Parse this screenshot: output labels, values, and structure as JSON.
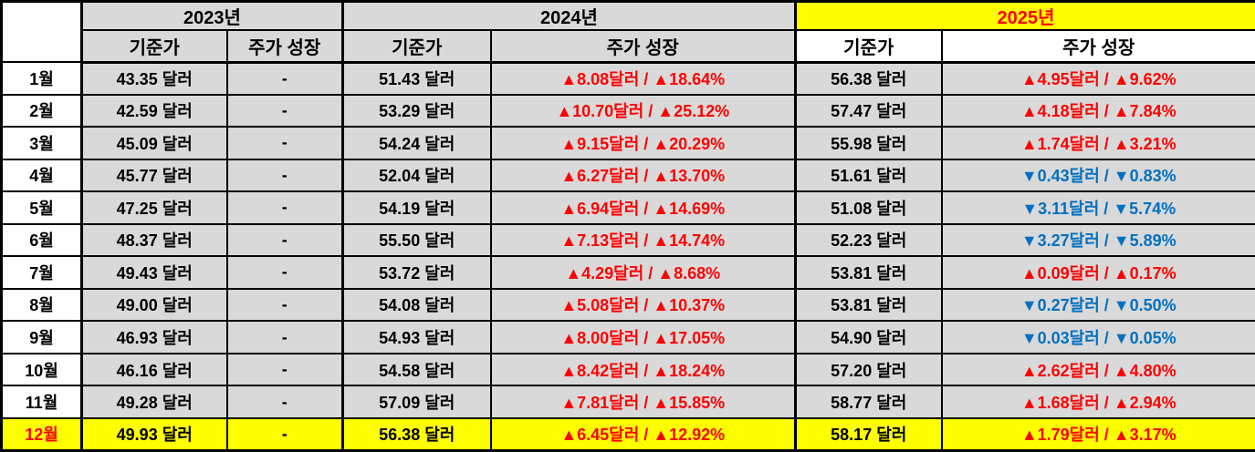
{
  "colors": {
    "highlight_yellow": "#ffff00",
    "up_red": "#ff0000",
    "down_blue": "#0070c0",
    "cell_gray": "#d9d9d9",
    "month_white": "#ffffff",
    "border_black": "#000000"
  },
  "chart_data": {
    "type": "table",
    "corner_label": "",
    "years": [
      {
        "label": "2023년",
        "highlight": false,
        "sub_columns": [
          "기준가",
          "주가 성장"
        ]
      },
      {
        "label": "2024년",
        "highlight": false,
        "sub_columns": [
          "기준가",
          "주가 성장"
        ]
      },
      {
        "label": "2025년",
        "highlight": true,
        "sub_columns": [
          "기준가",
          "주가 성장"
        ]
      }
    ],
    "rows": [
      {
        "month": "1월",
        "highlight": false,
        "y2023_price": "43.35 달러",
        "y2023_growth": "-",
        "y2024_price": "51.43 달러",
        "y2024_growth": "▲8.08달러 / ▲18.64%",
        "y2024_dir": "up",
        "y2025_price": "56.38 달러",
        "y2025_growth": "▲4.95달러 / ▲9.62%",
        "y2025_dir": "up"
      },
      {
        "month": "2월",
        "highlight": false,
        "y2023_price": "42.59 달러",
        "y2023_growth": "-",
        "y2024_price": "53.29 달러",
        "y2024_growth": "▲10.70달러 / ▲25.12%",
        "y2024_dir": "up",
        "y2025_price": "57.47 달러",
        "y2025_growth": "▲4.18달러 / ▲7.84%",
        "y2025_dir": "up"
      },
      {
        "month": "3월",
        "highlight": false,
        "y2023_price": "45.09 달러",
        "y2023_growth": "-",
        "y2024_price": "54.24 달러",
        "y2024_growth": "▲9.15달러 / ▲20.29%",
        "y2024_dir": "up",
        "y2025_price": "55.98 달러",
        "y2025_growth": "▲1.74달러 / ▲3.21%",
        "y2025_dir": "up"
      },
      {
        "month": "4월",
        "highlight": false,
        "y2023_price": "45.77 달러",
        "y2023_growth": "-",
        "y2024_price": "52.04 달러",
        "y2024_growth": "▲6.27달러 / ▲13.70%",
        "y2024_dir": "up",
        "y2025_price": "51.61 달러",
        "y2025_growth": "▼0.43달러 / ▼0.83%",
        "y2025_dir": "down"
      },
      {
        "month": "5월",
        "highlight": false,
        "y2023_price": "47.25 달러",
        "y2023_growth": "-",
        "y2024_price": "54.19 달러",
        "y2024_growth": "▲6.94달러 / ▲14.69%",
        "y2024_dir": "up",
        "y2025_price": "51.08 달러",
        "y2025_growth": "▼3.11달러 / ▼5.74%",
        "y2025_dir": "down"
      },
      {
        "month": "6월",
        "highlight": false,
        "y2023_price": "48.37 달러",
        "y2023_growth": "-",
        "y2024_price": "55.50 달러",
        "y2024_growth": "▲7.13달러 / ▲14.74%",
        "y2024_dir": "up",
        "y2025_price": "52.23 달러",
        "y2025_growth": "▼3.27달러 / ▼5.89%",
        "y2025_dir": "down"
      },
      {
        "month": "7월",
        "highlight": false,
        "y2023_price": "49.43 달러",
        "y2023_growth": "-",
        "y2024_price": "53.72 달러",
        "y2024_growth": "▲4.29달러 / ▲8.68%",
        "y2024_dir": "up",
        "y2025_price": "53.81 달러",
        "y2025_growth": "▲0.09달러 / ▲0.17%",
        "y2025_dir": "up"
      },
      {
        "month": "8월",
        "highlight": false,
        "y2023_price": "49.00 달러",
        "y2023_growth": "-",
        "y2024_price": "54.08 달러",
        "y2024_growth": "▲5.08달러 / ▲10.37%",
        "y2024_dir": "up",
        "y2025_price": "53.81 달러",
        "y2025_growth": "▼0.27달러 / ▼0.50%",
        "y2025_dir": "down"
      },
      {
        "month": "9월",
        "highlight": false,
        "y2023_price": "46.93 달러",
        "y2023_growth": "-",
        "y2024_price": "54.93 달러",
        "y2024_growth": "▲8.00달러 / ▲17.05%",
        "y2024_dir": "up",
        "y2025_price": "54.90 달러",
        "y2025_growth": "▼0.03달러 / ▼0.05%",
        "y2025_dir": "down"
      },
      {
        "month": "10월",
        "highlight": false,
        "y2023_price": "46.16 달러",
        "y2023_growth": "-",
        "y2024_price": "54.58 달러",
        "y2024_growth": "▲8.42달러 / ▲18.24%",
        "y2024_dir": "up",
        "y2025_price": "57.20 달러",
        "y2025_growth": "▲2.62달러 / ▲4.80%",
        "y2025_dir": "up"
      },
      {
        "month": "11월",
        "highlight": false,
        "y2023_price": "49.28 달러",
        "y2023_growth": "-",
        "y2024_price": "57.09 달러",
        "y2024_growth": "▲7.81달러 / ▲15.85%",
        "y2024_dir": "up",
        "y2025_price": "58.77 달러",
        "y2025_growth": "▲1.68달러 / ▲2.94%",
        "y2025_dir": "up"
      },
      {
        "month": "12월",
        "highlight": true,
        "y2023_price": "49.93 달러",
        "y2023_growth": "-",
        "y2024_price": "56.38 달러",
        "y2024_growth": "▲6.45달러 / ▲12.92%",
        "y2024_dir": "up",
        "y2025_price": "58.17 달러",
        "y2025_growth": "▲1.79달러 / ▲3.17%",
        "y2025_dir": "up"
      }
    ]
  }
}
